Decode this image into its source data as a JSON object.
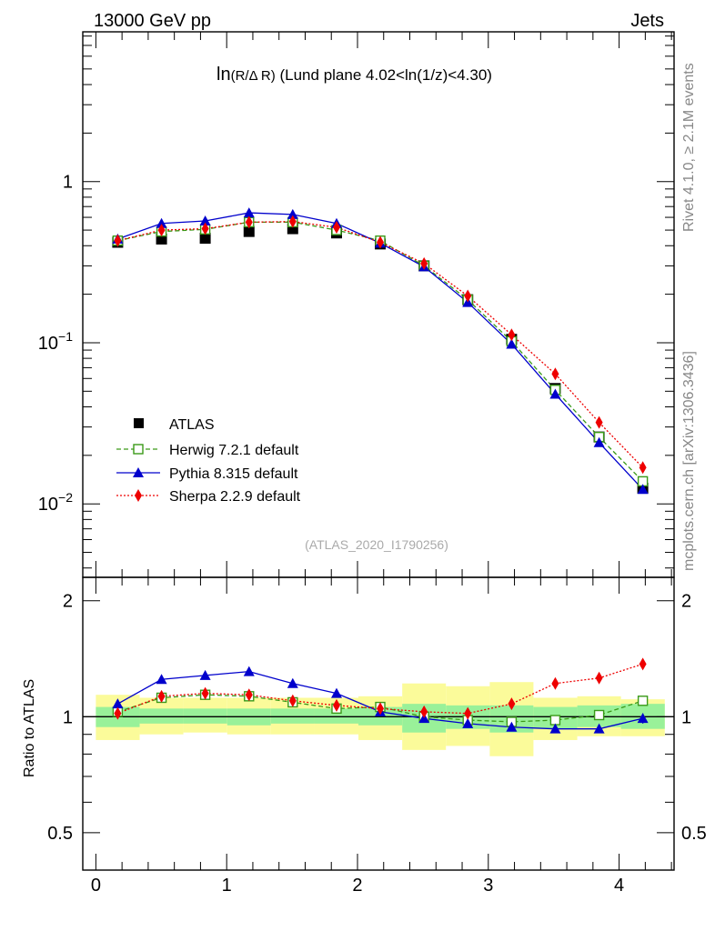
{
  "header": {
    "energy_label": "13000 GeV pp",
    "process_label": "Jets",
    "rivet_label": "Rivet 4.1.0, ≥ 2.1M events",
    "mcplots_label": "mcplots.cern.ch [arXiv:1306.3436]",
    "watermark": "(ATLAS_2020_I1790256)"
  },
  "chart_data": {
    "type": "line",
    "title_main": "ln",
    "title_frac": "(R/Δ R)",
    "title_rest": " (Lund plane 4.02<ln(1/z)<4.30)",
    "xlabel": "",
    "ylabel_ratio": "Ratio to ATLAS",
    "xlim": [
      -0.1,
      4.42
    ],
    "ylim_main": [
      0.0035,
      8.5
    ],
    "ylog_main": true,
    "ylim_ratio": [
      0.4,
      2.3
    ],
    "ylog_ratio": true,
    "x_ticks": [
      "0",
      "1",
      "2",
      "3",
      "4"
    ],
    "main_yticks": [
      {
        "value": 1,
        "base": "1",
        "exp": ""
      },
      {
        "value": 0.1,
        "base": "10",
        "exp": "−1"
      },
      {
        "value": 0.01,
        "base": "10",
        "exp": "−2"
      }
    ],
    "ratio_yticks": [
      {
        "value": 2,
        "label": "2"
      },
      {
        "value": 1,
        "label": "1"
      },
      {
        "value": 0.5,
        "label": "0.5"
      }
    ],
    "x": [
      0.167,
      0.502,
      0.836,
      1.171,
      1.505,
      1.84,
      2.174,
      2.509,
      2.843,
      3.178,
      3.512,
      3.847,
      4.181
    ],
    "bin_edges": [
      0,
      0.335,
      0.669,
      1.004,
      1.338,
      1.673,
      2.007,
      2.342,
      2.676,
      3.011,
      3.345,
      3.68,
      4.014,
      4.349
    ],
    "band_inner": [
      [
        0.94,
        1.06
      ],
      [
        0.96,
        1.05
      ],
      [
        0.96,
        1.05
      ],
      [
        0.95,
        1.05
      ],
      [
        0.96,
        1.05
      ],
      [
        0.96,
        1.05
      ],
      [
        0.95,
        1.06
      ],
      [
        0.91,
        1.08
      ],
      [
        0.93,
        1.07
      ],
      [
        0.91,
        1.07
      ],
      [
        0.93,
        1.06
      ],
      [
        0.94,
        1.07
      ],
      [
        0.93,
        1.08
      ]
    ],
    "band_outer": [
      [
        0.87,
        1.14
      ],
      [
        0.9,
        1.12
      ],
      [
        0.91,
        1.12
      ],
      [
        0.9,
        1.12
      ],
      [
        0.9,
        1.12
      ],
      [
        0.9,
        1.12
      ],
      [
        0.87,
        1.13
      ],
      [
        0.82,
        1.22
      ],
      [
        0.84,
        1.2
      ],
      [
        0.79,
        1.23
      ],
      [
        0.87,
        1.12
      ],
      [
        0.89,
        1.13
      ],
      [
        0.89,
        1.11
      ]
    ],
    "legend": [
      "ATLAS",
      "Herwig 7.2.1 default",
      "Pythia 8.315 default",
      "Sherpa 2.2.9 default"
    ],
    "series": [
      {
        "name": "ATLAS",
        "color": "#000000",
        "marker": "square",
        "values": [
          0.42,
          0.44,
          0.445,
          0.49,
          0.51,
          0.48,
          0.41,
          0.3,
          0.185,
          0.105,
          0.052,
          0.026,
          0.0125
        ]
      },
      {
        "name": "Herwig 7.2.1 default",
        "color": "#3a9a18",
        "marker": "open-square",
        "dash": "5,3",
        "values": [
          0.43,
          0.49,
          0.505,
          0.56,
          0.56,
          0.5,
          0.43,
          0.3,
          0.185,
          0.102,
          0.051,
          0.026,
          0.0138
        ],
        "ratio": [
          1.03,
          1.12,
          1.14,
          1.13,
          1.09,
          1.05,
          1.06,
          1.0,
          0.98,
          0.97,
          0.98,
          1.01,
          1.1
        ],
        "ratio_err": [
          0,
          0,
          0,
          0,
          0,
          0,
          0,
          0,
          0,
          0,
          0,
          0.02,
          0.03
        ]
      },
      {
        "name": "Pythia 8.315 default",
        "color": "#0000cc",
        "marker": "triangle",
        "dash": "",
        "values": [
          0.44,
          0.55,
          0.57,
          0.64,
          0.625,
          0.55,
          0.415,
          0.296,
          0.178,
          0.098,
          0.048,
          0.024,
          0.0123
        ],
        "ratio": [
          1.08,
          1.25,
          1.28,
          1.31,
          1.22,
          1.15,
          1.03,
          0.99,
          0.96,
          0.94,
          0.93,
          0.93,
          0.99
        ],
        "ratio_err": [
          0,
          0,
          0,
          0,
          0,
          0,
          0,
          0,
          0,
          0,
          0,
          0.01,
          0.03
        ]
      },
      {
        "name": "Sherpa 2.2.9 default",
        "color": "#ee0000",
        "marker": "diamond",
        "dash": "2,2",
        "values": [
          0.43,
          0.5,
          0.51,
          0.56,
          0.565,
          0.52,
          0.42,
          0.31,
          0.195,
          0.112,
          0.064,
          0.032,
          0.0168
        ],
        "ratio": [
          1.02,
          1.13,
          1.15,
          1.14,
          1.1,
          1.07,
          1.05,
          1.03,
          1.02,
          1.08,
          1.22,
          1.26,
          1.37
        ],
        "ratio_err": [
          0,
          0,
          0,
          0,
          0,
          0,
          0,
          0,
          0,
          0,
          0,
          0.02,
          0.04
        ]
      }
    ]
  }
}
